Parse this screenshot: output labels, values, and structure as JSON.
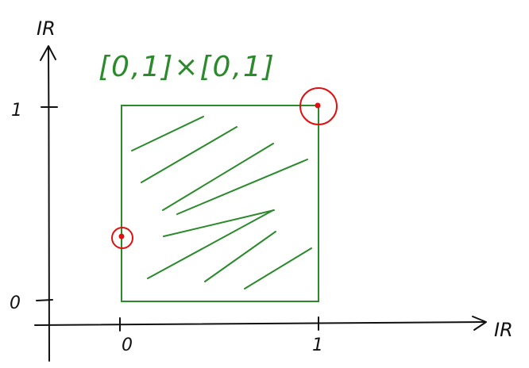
{
  "axes": {
    "x_label": "IR",
    "y_label": "IR",
    "x_ticks": [
      {
        "label": "0",
        "value": 0
      },
      {
        "label": "1",
        "value": 1
      }
    ],
    "y_ticks": [
      {
        "label": "0",
        "value": 0
      },
      {
        "label": "1",
        "value": 1
      }
    ]
  },
  "set_label": "[0,1]×[0,1]",
  "region": {
    "x_range": [
      0,
      1
    ],
    "y_range": [
      0,
      1
    ],
    "fill": "hatched",
    "color": "#2b8a2b"
  },
  "points": [
    {
      "x": 1,
      "y": 1,
      "color": "#e01010",
      "circled": true
    },
    {
      "x": 0,
      "y": 0.33,
      "color": "#e01010",
      "circled": true
    }
  ],
  "colors": {
    "axis": "#111111",
    "region": "#2b8a2b",
    "point": "#e01010"
  }
}
